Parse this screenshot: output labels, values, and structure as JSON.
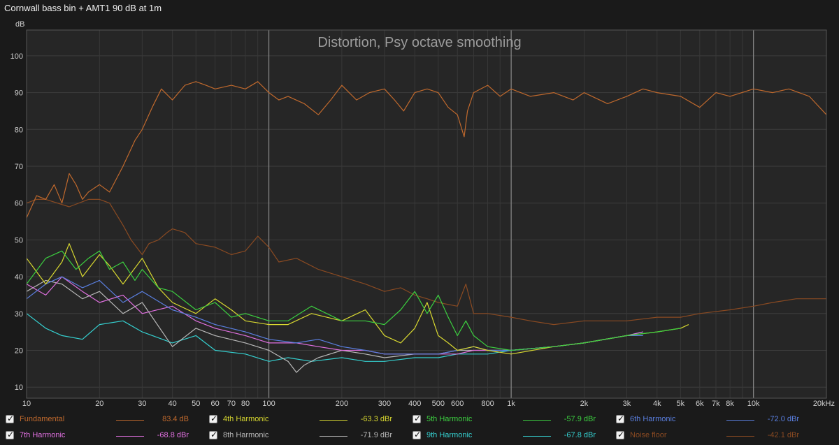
{
  "window": {
    "title": "Cornwall bass bin + AMT1 90 dB at 1m"
  },
  "chart_data": {
    "type": "line",
    "title": "Distortion, Psy octave smoothing",
    "ylabel": "dB",
    "xlabel": "",
    "xscale": "log",
    "xlim": [
      10,
      20000
    ],
    "ylim": [
      7,
      107
    ],
    "grid": true,
    "legend_position": "bottom",
    "y_ticks": [
      10,
      20,
      30,
      40,
      50,
      60,
      70,
      80,
      90,
      100
    ],
    "y_tick_labels": [
      "10",
      "20",
      "30",
      "40",
      "50",
      "60",
      "70",
      "80",
      "90",
      "100"
    ],
    "x_ticks": [
      10,
      20,
      30,
      40,
      50,
      60,
      70,
      80,
      100,
      200,
      300,
      400,
      500,
      600,
      800,
      1000,
      2000,
      3000,
      4000,
      5000,
      6000,
      7000,
      8000,
      10000,
      20000
    ],
    "x_tick_labels": [
      "10",
      "20",
      "30",
      "40",
      "50",
      "60",
      "70",
      "80",
      "100",
      "200",
      "300",
      "400",
      "500",
      "600",
      "800",
      "1k",
      "2k",
      "3k",
      "4k",
      "5k",
      "6k",
      "7k",
      "8k",
      "10k",
      "20kHz"
    ],
    "series": [
      {
        "name": "Fundamental",
        "value_label": "83.4 dB",
        "color": "#c0692d",
        "x": [
          10,
          11,
          12,
          13,
          14,
          15,
          16,
          17,
          18,
          20,
          22,
          25,
          28,
          30,
          33,
          36,
          40,
          45,
          50,
          55,
          60,
          70,
          80,
          90,
          100,
          110,
          120,
          140,
          160,
          180,
          200,
          230,
          260,
          300,
          330,
          360,
          400,
          450,
          500,
          550,
          600,
          640,
          660,
          700,
          800,
          900,
          1000,
          1200,
          1500,
          1800,
          2000,
          2500,
          3000,
          3500,
          4000,
          5000,
          6000,
          7000,
          8000,
          10000,
          12000,
          14000,
          17000,
          20000
        ],
        "y": [
          56,
          62,
          61,
          65,
          60,
          68,
          65,
          61,
          63,
          65,
          63,
          70,
          77,
          80,
          86,
          91,
          88,
          92,
          93,
          92,
          91,
          92,
          91,
          93,
          90,
          88,
          89,
          87,
          84,
          88,
          92,
          88,
          90,
          91,
          88,
          85,
          90,
          91,
          90,
          86,
          84,
          78,
          85,
          90,
          92,
          89,
          91,
          89,
          90,
          88,
          90,
          87,
          89,
          91,
          90,
          89,
          86,
          90,
          89,
          91,
          90,
          91,
          89,
          84
        ]
      },
      {
        "name": "4th Harmonic",
        "value_label": "-63.3 dBr",
        "color": "#d8d830",
        "x": [
          10,
          12,
          14,
          15,
          17,
          20,
          22,
          25,
          30,
          35,
          40,
          50,
          60,
          70,
          80,
          100,
          120,
          150,
          200,
          250,
          300,
          350,
          400,
          450,
          500,
          550,
          600,
          700,
          800,
          1000,
          1500,
          2000,
          3000,
          4000,
          5000,
          5400
        ],
        "y": [
          45,
          38,
          44,
          49,
          40,
          46,
          43,
          38,
          45,
          37,
          33,
          30,
          34,
          31,
          28,
          27,
          27,
          30,
          28,
          31,
          24,
          22,
          26,
          33,
          24,
          22,
          20,
          21,
          20,
          19,
          21,
          22,
          24,
          25,
          26,
          27
        ]
      },
      {
        "name": "5th Harmonic",
        "value_label": "-57.9 dBr",
        "color": "#3cd040",
        "x": [
          10,
          12,
          14,
          16,
          18,
          20,
          22,
          25,
          28,
          30,
          35,
          40,
          50,
          60,
          70,
          80,
          100,
          120,
          150,
          200,
          250,
          300,
          350,
          400,
          450,
          500,
          550,
          600,
          650,
          700,
          800,
          1000,
          1500,
          2000,
          3000,
          4000,
          5000
        ],
        "y": [
          38,
          45,
          47,
          42,
          45,
          47,
          42,
          44,
          39,
          42,
          37,
          36,
          31,
          33,
          29,
          30,
          28,
          28,
          32,
          28,
          28,
          27,
          31,
          36,
          30,
          35,
          29,
          24,
          28,
          24,
          21,
          20,
          21,
          22,
          24,
          25,
          26
        ]
      },
      {
        "name": "6th Harmonic",
        "value_label": "-72.0 dBr",
        "color": "#5a7fe0",
        "x": [
          10,
          12,
          14,
          17,
          20,
          25,
          30,
          40,
          50,
          60,
          80,
          100,
          130,
          160,
          200,
          250,
          300,
          400,
          500,
          600,
          700,
          800,
          1000,
          1500,
          2000,
          3000,
          3500
        ],
        "y": [
          34,
          38,
          40,
          37,
          39,
          33,
          36,
          31,
          29,
          27,
          25,
          23,
          22,
          23,
          21,
          20,
          19,
          19,
          19,
          20,
          21,
          20,
          20,
          21,
          22,
          24,
          24
        ]
      },
      {
        "name": "7th Harmonic",
        "value_label": "-68.8 dBr",
        "color": "#e070e0",
        "x": [
          10,
          12,
          14,
          17,
          20,
          25,
          30,
          40,
          50,
          60,
          80,
          100,
          130,
          160,
          200,
          250,
          300,
          400,
          500,
          600,
          700,
          800,
          1000,
          1500,
          2000,
          3000,
          3500
        ],
        "y": [
          38,
          35,
          40,
          36,
          33,
          35,
          30,
          32,
          28,
          26,
          24,
          22,
          22,
          21,
          20,
          20,
          19,
          19,
          19,
          19,
          20,
          20,
          20,
          21,
          22,
          24,
          25
        ]
      },
      {
        "name": "8th Harmonic",
        "value_label": "-71.9 dBr",
        "color": "#b8b8b8",
        "x": [
          10,
          12,
          14,
          17,
          20,
          25,
          30,
          40,
          50,
          60,
          80,
          100,
          120,
          130,
          140,
          160,
          200,
          250,
          300,
          400,
          500,
          600,
          800,
          1000,
          1500,
          2000,
          3000
        ],
        "y": [
          36,
          39,
          38,
          34,
          36,
          30,
          33,
          21,
          26,
          24,
          22,
          20,
          17,
          14,
          16,
          18,
          20,
          19,
          18,
          19,
          19,
          20,
          20,
          20,
          21,
          22,
          24
        ]
      },
      {
        "name": "9th Harmonic",
        "value_label": "-67.8 dBr",
        "color": "#35d0d0",
        "x": [
          10,
          12,
          14,
          17,
          20,
          25,
          30,
          40,
          50,
          60,
          80,
          100,
          120,
          150,
          200,
          250,
          300,
          400,
          500,
          600,
          800,
          1000,
          1500,
          2000,
          3000,
          3500
        ],
        "y": [
          30,
          26,
          24,
          23,
          27,
          28,
          25,
          22,
          24,
          20,
          19,
          17,
          18,
          17,
          18,
          17,
          17,
          18,
          18,
          19,
          19,
          20,
          21,
          22,
          24,
          25
        ]
      },
      {
        "name": "Noise floor",
        "value_label": "-42.1 dBr",
        "color": "#8a4a22",
        "x": [
          10,
          11,
          12,
          15,
          18,
          20,
          22,
          25,
          27,
          30,
          32,
          35,
          38,
          40,
          45,
          50,
          60,
          70,
          80,
          90,
          100,
          110,
          130,
          160,
          200,
          250,
          300,
          350,
          400,
          450,
          500,
          600,
          650,
          700,
          800,
          1000,
          1200,
          1500,
          2000,
          2500,
          3000,
          4000,
          5000,
          6000,
          8000,
          10000,
          12000,
          15000,
          20000
        ],
        "y": [
          60,
          61,
          61,
          59,
          61,
          61,
          60,
          54,
          50,
          46,
          49,
          50,
          52,
          53,
          52,
          49,
          48,
          46,
          47,
          51,
          48,
          44,
          45,
          42,
          40,
          38,
          36,
          37,
          35,
          34,
          33,
          32,
          38,
          30,
          30,
          29,
          28,
          27,
          28,
          28,
          28,
          29,
          29,
          30,
          31,
          32,
          33,
          34,
          34
        ]
      }
    ]
  }
}
